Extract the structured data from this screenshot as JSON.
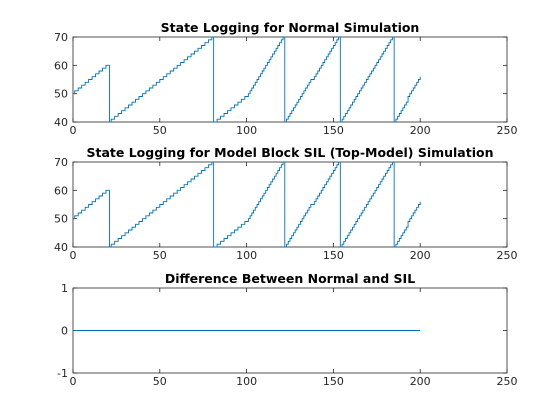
{
  "colors": {
    "series": "#0072bd",
    "axis": "#262626",
    "background": "#ffffff"
  },
  "chart_data": [
    {
      "type": "line",
      "title": "State Logging for Normal Simulation",
      "xlim": [
        0,
        250
      ],
      "ylim": [
        40,
        70
      ],
      "xticks": [
        0,
        50,
        100,
        150,
        200,
        250
      ],
      "yticks": [
        40,
        50,
        60,
        70
      ],
      "grid": false,
      "series": [
        {
          "style": "stairs",
          "x": [
            0,
            20,
            21,
            80,
            81,
            100,
            121,
            122,
            153,
            154,
            184,
            185,
            200
          ],
          "y": [
            50,
            60,
            40,
            70,
            40,
            49,
            70,
            40,
            70,
            40,
            70,
            40,
            56
          ]
        }
      ]
    },
    {
      "type": "line",
      "title": "State Logging for Model Block SIL (Top-Model) Simulation",
      "xlim": [
        0,
        250
      ],
      "ylim": [
        40,
        70
      ],
      "xticks": [
        0,
        50,
        100,
        150,
        200,
        250
      ],
      "yticks": [
        40,
        50,
        60,
        70
      ],
      "grid": false,
      "series": [
        {
          "style": "stairs",
          "x": [
            0,
            20,
            21,
            80,
            81,
            100,
            121,
            122,
            153,
            154,
            184,
            185,
            200
          ],
          "y": [
            50,
            60,
            40,
            70,
            40,
            49,
            70,
            40,
            70,
            40,
            70,
            40,
            56
          ]
        }
      ]
    },
    {
      "type": "line",
      "title": "Difference Between Normal and SIL",
      "xlim": [
        0,
        250
      ],
      "ylim": [
        -1,
        1
      ],
      "xticks": [
        0,
        50,
        100,
        150,
        200,
        250
      ],
      "yticks": [
        -1,
        0,
        1
      ],
      "grid": false,
      "series": [
        {
          "style": "line",
          "x": [
            0,
            200
          ],
          "y": [
            0,
            0
          ]
        }
      ]
    }
  ]
}
